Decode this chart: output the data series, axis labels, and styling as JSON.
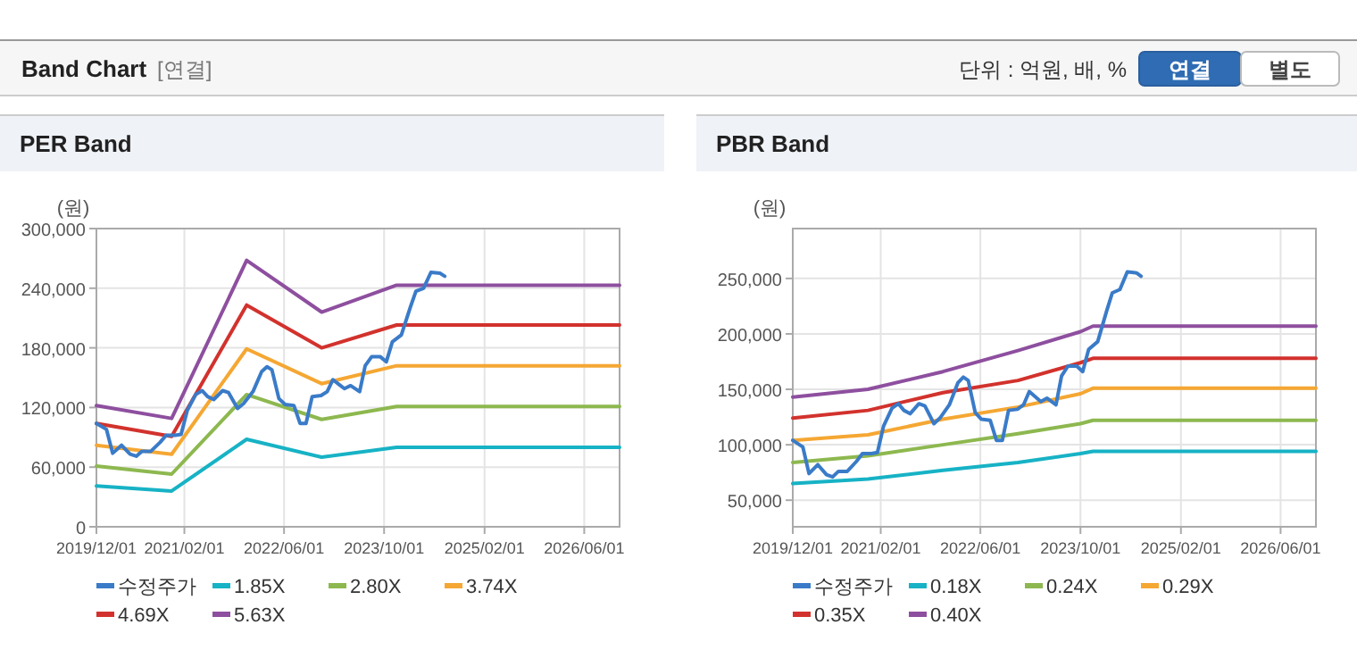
{
  "chart_data": [
    {
      "type": "other",
      "title": "Band Chart",
      "subtitle": "[연결]",
      "annotations": [
        "단위 : 억원, 배, %",
        "연결",
        "별도"
      ]
    },
    {
      "type": "line",
      "title": "PER Band",
      "ylabel": "(원)",
      "grid": true,
      "legend": "bottom",
      "xlim": [
        "2019-12-01",
        "2026-11-20"
      ],
      "xticks": [
        {
          "value": "2019-12-01",
          "label": "2019/12/01"
        },
        {
          "value": "2021-02-01",
          "label": "2021/02/01"
        },
        {
          "value": "2022-06-01",
          "label": "2022/06/01"
        },
        {
          "value": "2023-10-01",
          "label": "2023/10/01"
        },
        {
          "value": "2025-02-01",
          "label": "2025/02/01"
        },
        {
          "value": "2026-06-01",
          "label": "2026/06/01"
        }
      ],
      "ylim": [
        0,
        300000
      ],
      "yticks": [
        0,
        {
          "value": 60000,
          "label": "60,000"
        },
        {
          "value": 120000,
          "label": "120,000"
        },
        {
          "value": 180000,
          "label": "180,000"
        },
        {
          "value": 240000,
          "label": "240,000"
        },
        {
          "value": 300000,
          "label": "300,000"
        }
      ],
      "x": [
        "2019-12-01",
        "2020-12-01",
        "2021-12-01",
        "2022-12-01",
        "2023-12-01",
        "2026-11-20"
      ],
      "series": [
        {
          "name": "수정주가",
          "color": "#3a7bc8",
          "x": [
            "2019-12-01",
            "2020-01-19",
            "2020-02-18",
            "2020-04-01",
            "2020-05-13",
            "2020-06-12",
            "2020-07-10",
            "2020-08-22",
            "2020-10-06",
            "2020-11-04",
            "2020-12-18",
            "2021-01-16",
            "2021-02-15",
            "2021-03-28",
            "2021-04-28",
            "2021-05-25",
            "2021-06-24",
            "2021-08-06",
            "2021-09-04",
            "2021-10-18",
            "2021-11-16",
            "2022-01-01",
            "2022-02-12",
            "2022-03-10",
            "2022-04-03",
            "2022-05-07",
            "2022-06-06",
            "2022-07-19",
            "2022-08-18",
            "2022-09-16",
            "2022-10-16",
            "2022-11-28",
            "2022-12-28",
            "2023-01-25",
            "2023-02-25",
            "2023-03-22",
            "2023-04-21",
            "2023-06-04",
            "2023-07-01",
            "2023-08-01",
            "2023-09-13",
            "2023-10-12",
            "2023-11-10",
            "2023-12-24",
            "2024-02-06",
            "2024-03-04",
            "2024-04-10",
            "2024-05-16",
            "2024-06-30",
            "2024-07-22"
          ],
          "values": [
            104000,
            98000,
            74000,
            82000,
            73000,
            71000,
            76000,
            76000,
            85000,
            92000,
            92000,
            93000,
            117000,
            133000,
            137000,
            131000,
            128000,
            137000,
            135000,
            119000,
            124000,
            136000,
            156000,
            161000,
            158000,
            129000,
            123000,
            122000,
            104000,
            104000,
            131000,
            132000,
            136000,
            148000,
            143000,
            139000,
            142000,
            136000,
            162000,
            171000,
            171000,
            166000,
            186000,
            193000,
            221000,
            237000,
            240000,
            256000,
            255000,
            252000
          ]
        },
        {
          "name": "1.85X",
          "color": "#17b2c5",
          "values": [
            41000,
            36000,
            88000,
            70000,
            80000,
            80000
          ]
        },
        {
          "name": "2.80X",
          "color": "#8db84f",
          "values": [
            61000,
            53000,
            133000,
            108000,
            121000,
            121000
          ]
        },
        {
          "name": "3.74X",
          "color": "#f5a733",
          "values": [
            82000,
            73000,
            179000,
            144000,
            162000,
            162000
          ]
        },
        {
          "name": "4.69X",
          "color": "#d2322d",
          "values": [
            104000,
            91000,
            223000,
            180000,
            203000,
            203000
          ]
        },
        {
          "name": "5.63X",
          "color": "#8e4f9f",
          "values": [
            122000,
            109000,
            268000,
            216000,
            243000,
            243000
          ]
        }
      ]
    },
    {
      "type": "line",
      "title": "PBR Band",
      "ylabel": "(원)",
      "grid": true,
      "legend": "bottom",
      "xlim": [
        "2019-12-01",
        "2026-11-20"
      ],
      "xticks": [
        {
          "value": "2019-12-01",
          "label": "2019/12/01"
        },
        {
          "value": "2021-02-01",
          "label": "2021/02/01"
        },
        {
          "value": "2022-06-01",
          "label": "2022/06/01"
        },
        {
          "value": "2023-10-01",
          "label": "2023/10/01"
        },
        {
          "value": "2025-02-01",
          "label": "2025/02/01"
        },
        {
          "value": "2026-06-01",
          "label": "2026/06/01"
        }
      ],
      "ylim": [
        26000,
        295000
      ],
      "yticks": [
        {
          "value": 50000,
          "label": "50,000"
        },
        {
          "value": 100000,
          "label": "100,000"
        },
        {
          "value": 150000,
          "label": "150,000"
        },
        {
          "value": 200000,
          "label": "200,000"
        },
        {
          "value": 250000,
          "label": "250,000"
        }
      ],
      "x": [
        "2019-12-01",
        "2020-12-01",
        "2021-12-01",
        "2022-12-01",
        "2023-10-01",
        "2023-12-01",
        "2026-11-20"
      ],
      "series": [
        {
          "name": "수정주가",
          "color": "#3a7bc8",
          "x": [
            "2019-12-01",
            "2020-01-19",
            "2020-02-18",
            "2020-04-01",
            "2020-05-13",
            "2020-06-12",
            "2020-07-10",
            "2020-08-22",
            "2020-10-06",
            "2020-11-04",
            "2020-12-18",
            "2021-01-16",
            "2021-02-15",
            "2021-03-28",
            "2021-04-28",
            "2021-05-25",
            "2021-06-24",
            "2021-08-06",
            "2021-09-04",
            "2021-10-18",
            "2021-11-16",
            "2022-01-01",
            "2022-02-12",
            "2022-03-10",
            "2022-04-03",
            "2022-05-07",
            "2022-06-06",
            "2022-07-19",
            "2022-08-18",
            "2022-09-16",
            "2022-10-16",
            "2022-11-28",
            "2022-12-28",
            "2023-01-25",
            "2023-02-25",
            "2023-03-22",
            "2023-04-21",
            "2023-06-04",
            "2023-07-01",
            "2023-08-01",
            "2023-09-13",
            "2023-10-12",
            "2023-11-10",
            "2023-12-24",
            "2024-02-06",
            "2024-03-04",
            "2024-04-10",
            "2024-05-16",
            "2024-06-30",
            "2024-07-22"
          ],
          "values": [
            104000,
            98000,
            74000,
            82000,
            73000,
            71000,
            76000,
            76000,
            85000,
            92000,
            92000,
            93000,
            117000,
            133000,
            137000,
            131000,
            128000,
            137000,
            135000,
            119000,
            124000,
            136000,
            156000,
            161000,
            158000,
            129000,
            123000,
            122000,
            104000,
            104000,
            131000,
            132000,
            136000,
            148000,
            143000,
            139000,
            142000,
            136000,
            162000,
            171000,
            171000,
            166000,
            186000,
            193000,
            221000,
            237000,
            240000,
            256000,
            255000,
            252000
          ]
        },
        {
          "name": "0.18X",
          "color": "#17b2c5",
          "values": [
            65000,
            69000,
            77000,
            84000,
            92000,
            94000,
            94000
          ]
        },
        {
          "name": "0.24X",
          "color": "#8db84f",
          "values": [
            84000,
            90000,
            100000,
            110000,
            119000,
            122000,
            122000
          ]
        },
        {
          "name": "0.29X",
          "color": "#f5a733",
          "values": [
            104000,
            109000,
            123000,
            134000,
            146000,
            151000,
            151000
          ]
        },
        {
          "name": "0.35X",
          "color": "#d2322d",
          "values": [
            124000,
            131000,
            147000,
            158000,
            174000,
            178000,
            178000
          ]
        },
        {
          "name": "0.40X",
          "color": "#8e4f9f",
          "values": [
            143000,
            150000,
            166000,
            185000,
            202000,
            207000,
            207000
          ]
        }
      ]
    }
  ]
}
